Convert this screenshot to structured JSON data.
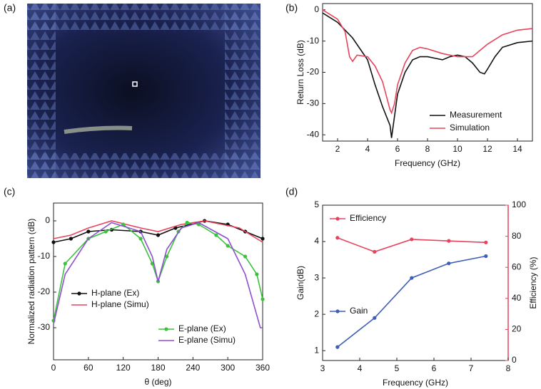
{
  "chart_data": [
    {
      "type": "photo",
      "panel_label": "(a)"
    },
    {
      "type": "line",
      "panel_label": "(b)",
      "x_label": "Frequency (GHz)",
      "y_label": "Return Loss (dB)",
      "xlim": [
        1,
        15
      ],
      "xticks": [
        2,
        4,
        6,
        8,
        10,
        12,
        14
      ],
      "ylim": [
        -42,
        2
      ],
      "yticks": [
        0,
        -10,
        -20,
        -30,
        -40
      ],
      "series": [
        {
          "name": "Measurement",
          "color": "#111111",
          "x": [
            1,
            2,
            3,
            4,
            4.5,
            5,
            5.5,
            5.6,
            5.8,
            6,
            6.5,
            7,
            7.5,
            8,
            8.5,
            9,
            9.5,
            10,
            10.5,
            11,
            11.5,
            11.8,
            12,
            12.5,
            13,
            14,
            15
          ],
          "values": [
            -1,
            -4,
            -9,
            -16,
            -24,
            -31,
            -37,
            -41,
            -34,
            -27,
            -20,
            -16,
            -15,
            -15,
            -15.5,
            -16,
            -15,
            -14.5,
            -15,
            -17,
            -20,
            -20.5,
            -19,
            -15,
            -12,
            -10.5,
            -10
          ]
        },
        {
          "name": "Simulation",
          "color": "#e8435e",
          "x": [
            1,
            2,
            2.5,
            2.8,
            3,
            3.3,
            4,
            4.5,
            5,
            5.5,
            5.6,
            5.8,
            6,
            6.5,
            7,
            7.5,
            8,
            9,
            10,
            10.5,
            11,
            11.5,
            12,
            13,
            14,
            15
          ],
          "values": [
            0,
            -3,
            -7,
            -15,
            -16.5,
            -14.5,
            -15,
            -18,
            -23,
            -32,
            -33,
            -30,
            -24,
            -17,
            -13,
            -12,
            -12.5,
            -14,
            -15,
            -15,
            -15,
            -13,
            -11,
            -8,
            -6.5,
            -6
          ]
        }
      ]
    },
    {
      "type": "line",
      "panel_label": "(c)",
      "x_label": "θ (deg)",
      "y_label": "Normalized radiation pattern (dB)",
      "xlim": [
        0,
        360
      ],
      "xticks": [
        0,
        60,
        120,
        180,
        240,
        300,
        360
      ],
      "ylim": [
        -39,
        5
      ],
      "yticks": [
        0,
        -10,
        -20,
        -30
      ],
      "series": [
        {
          "name": "H-plane (Ex)",
          "color": "#111111",
          "marker": "circle",
          "x": [
            0,
            30,
            60,
            100,
            150,
            180,
            210,
            260,
            300,
            330,
            360
          ],
          "values": [
            -6,
            -5,
            -3,
            -2.5,
            -3,
            -4,
            -2,
            0,
            -1,
            -3,
            -5
          ]
        },
        {
          "name": "H-plane (Simu)",
          "color": "#e8435e",
          "x": [
            0,
            30,
            60,
            100,
            150,
            180,
            220,
            260,
            320,
            360
          ],
          "values": [
            -5,
            -4,
            -2,
            0,
            -2,
            -3,
            -1,
            0,
            -2,
            -6
          ]
        },
        {
          "name": "E-plane (Ex)",
          "color": "#3cc23c",
          "marker": "circle",
          "x": [
            0,
            20,
            60,
            90,
            120,
            150,
            170,
            180,
            195,
            215,
            230,
            250,
            280,
            300,
            330,
            350,
            360
          ],
          "values": [
            -28,
            -12,
            -5,
            -3,
            -1,
            -5,
            -12,
            -17,
            -10,
            -3,
            -0.5,
            -1,
            -4,
            -7,
            -10,
            -15,
            -22
          ]
        },
        {
          "name": "E-plane (Simu)",
          "color": "#8f4fd0",
          "x": [
            0,
            20,
            60,
            100,
            150,
            170,
            180,
            195,
            220,
            250,
            300,
            330,
            356,
            360
          ],
          "values": [
            -29,
            -15,
            -5,
            -0.5,
            -3,
            -10,
            -17,
            -8,
            -2,
            -0.5,
            -5,
            -15,
            -30,
            -30
          ]
        }
      ]
    },
    {
      "type": "line",
      "panel_label": "(d)",
      "x_label": "Frequency (GHz)",
      "y_label": "Gain(dB)",
      "y2_label": "Efficiency (%)",
      "xlim": [
        3,
        8
      ],
      "xticks": [
        3,
        4,
        5,
        6,
        7,
        8
      ],
      "ylim": [
        0.73,
        5
      ],
      "yticks": [
        1,
        2,
        3,
        4,
        5
      ],
      "y2lim": [
        0,
        100
      ],
      "y2ticks": [
        0,
        20,
        40,
        60,
        80,
        100
      ],
      "y2color": "#e8435e",
      "series": [
        {
          "name": "Efficiency",
          "color": "#e8435e",
          "marker": "circle",
          "axis": "y2",
          "x": [
            3.4,
            4.4,
            5.4,
            6.4,
            7.4
          ],
          "values": [
            79,
            70,
            78,
            77,
            76
          ]
        },
        {
          "name": "Gain",
          "color": "#3f5fb5",
          "marker": "circle",
          "x": [
            3.4,
            4.4,
            5.4,
            6.4,
            7.4
          ],
          "values": [
            1.1,
            1.9,
            3.0,
            3.4,
            3.6
          ]
        }
      ]
    }
  ]
}
